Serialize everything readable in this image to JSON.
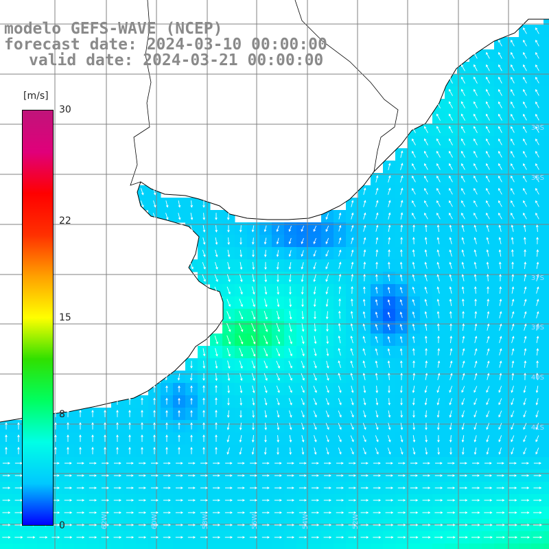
{
  "title": {
    "line1": "modelo GEFS-WAVE (NCEP)",
    "line2": "forecast date: 2024-03-10 00:00:00",
    "line3": "valid date: 2024-03-21 00:00:00"
  },
  "colorbar": {
    "unit": "[m/s]",
    "min": 0,
    "max": 30,
    "ticks": [
      "30",
      "22",
      "15",
      "8",
      "0"
    ],
    "tick_values": [
      30,
      22,
      15,
      8,
      0
    ],
    "colors": [
      "#0000ff",
      "#00c8ff",
      "#00ffe6",
      "#00ff60",
      "#30e000",
      "#ffff00",
      "#ffa000",
      "#ff3000",
      "#ff0000",
      "#e0007a",
      "#c0147a"
    ]
  },
  "lat_labels": [
    "33S",
    "35S",
    "37S",
    "39S",
    "40S",
    "41S"
  ],
  "lon_labels": [
    "62W",
    "60W",
    "58W",
    "56W",
    "54W",
    "52W"
  ],
  "colors": {
    "land": "#ffffff",
    "coastline": "#000000",
    "grid": "#808080",
    "arrow": "#ffffff",
    "title": "#8a8a8a"
  },
  "map_data": {
    "variable": "wind speed",
    "units": "m/s",
    "speed_field_description": "gridded wind speed 0-12 m/s over Rio de la Plata and adjacent South Atlantic"
  }
}
